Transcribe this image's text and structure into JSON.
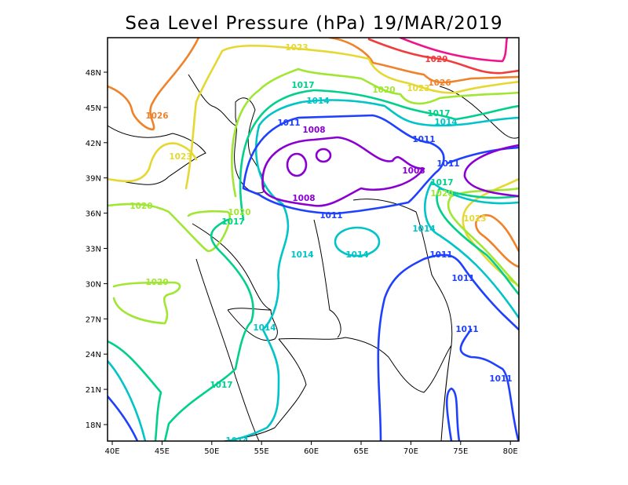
{
  "title": "Sea Level Pressure (hPa) 19/MAR/2019",
  "map": {
    "lon_ticks": [
      "40E",
      "45E",
      "50E",
      "55E",
      "60E",
      "65E",
      "70E",
      "75E",
      "80E"
    ],
    "lat_ticks": [
      "48N",
      "45N",
      "42N",
      "39N",
      "36N",
      "33N",
      "30N",
      "27N",
      "24N",
      "21N",
      "18N"
    ],
    "contour_levels": [
      1008,
      1011,
      1014,
      1017,
      1020,
      1023,
      1026,
      1029,
      1032
    ],
    "contour_colors": {
      "1008": "#8a00d2",
      "1011": "#2040ff",
      "1014": "#00c4c8",
      "1017": "#00d08c",
      "1020": "#a0e632",
      "1023": "#e6d832",
      "1026": "#f0822a",
      "1029": "#f03c3c",
      "1032": "#f0148c"
    },
    "contour_labels": [
      "1029",
      "1026",
      "1023",
      "1020",
      "1023",
      "1017",
      "1014",
      "1011",
      "1008",
      "1011",
      "1008",
      "1011",
      "1017",
      "1020",
      "1023",
      "1014",
      "1011",
      "1011",
      "1011",
      "1011",
      "1026",
      "1023",
      "1020",
      "1020",
      "1017",
      "1008",
      "1011",
      "1014",
      "1014",
      "1020",
      "1014",
      "1017",
      "1014",
      "1017",
      "1014"
    ]
  }
}
